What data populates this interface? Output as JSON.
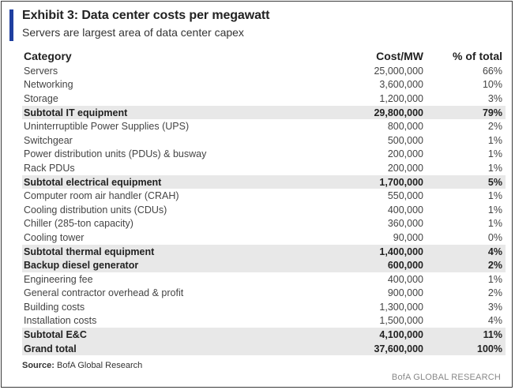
{
  "exhibit": {
    "title": "Exhibit 3: Data center costs per megawatt",
    "subtitle": "Servers are largest area of data center capex"
  },
  "table": {
    "headers": [
      "Category",
      "Cost/MW",
      "% of total"
    ],
    "rows": [
      {
        "category": "Servers",
        "cost": "25,000,000",
        "pct": "66%",
        "subtotal": false
      },
      {
        "category": "Networking",
        "cost": "3,600,000",
        "pct": "10%",
        "subtotal": false
      },
      {
        "category": "Storage",
        "cost": "1,200,000",
        "pct": "3%",
        "subtotal": false
      },
      {
        "category": "Subtotal IT equipment",
        "cost": "29,800,000",
        "pct": "79%",
        "subtotal": true
      },
      {
        "category": "Uninterruptible Power Supplies (UPS)",
        "cost": "800,000",
        "pct": "2%",
        "subtotal": false
      },
      {
        "category": "Switchgear",
        "cost": "500,000",
        "pct": "1%",
        "subtotal": false
      },
      {
        "category": "Power distribution units (PDUs) & busway",
        "cost": "200,000",
        "pct": "1%",
        "subtotal": false
      },
      {
        "category": "Rack PDUs",
        "cost": "200,000",
        "pct": "1%",
        "subtotal": false
      },
      {
        "category": "Subtotal electrical equipment",
        "cost": "1,700,000",
        "pct": "5%",
        "subtotal": true
      },
      {
        "category": "Computer room air handler (CRAH)",
        "cost": "550,000",
        "pct": "1%",
        "subtotal": false
      },
      {
        "category": "Cooling distribution units (CDUs)",
        "cost": "400,000",
        "pct": "1%",
        "subtotal": false
      },
      {
        "category": "Chiller (285-ton capacity)",
        "cost": "360,000",
        "pct": "1%",
        "subtotal": false
      },
      {
        "category": "Cooling tower",
        "cost": "90,000",
        "pct": "0%",
        "subtotal": false
      },
      {
        "category": "Subtotal thermal equipment",
        "cost": "1,400,000",
        "pct": "4%",
        "subtotal": true
      },
      {
        "category": "Backup diesel generator",
        "cost": "600,000",
        "pct": "2%",
        "subtotal": true
      },
      {
        "category": "Engineering fee",
        "cost": "400,000",
        "pct": "1%",
        "subtotal": false
      },
      {
        "category": "General contractor overhead & profit",
        "cost": "900,000",
        "pct": "2%",
        "subtotal": false
      },
      {
        "category": "Building costs",
        "cost": "1,300,000",
        "pct": "3%",
        "subtotal": false
      },
      {
        "category": "Installation costs",
        "cost": "1,500,000",
        "pct": "4%",
        "subtotal": false
      },
      {
        "category": "Subtotal E&C",
        "cost": "4,100,000",
        "pct": "11%",
        "subtotal": true
      },
      {
        "category": "Grand total",
        "cost": "37,600,000",
        "pct": "100%",
        "subtotal": true
      }
    ]
  },
  "source": {
    "label": "Source:",
    "text": " BofA Global Research"
  },
  "branding": "BofA GLOBAL RESEARCH",
  "colors": {
    "accent_bar": "#1f3fa0",
    "subtotal_row": "#e8e8e8",
    "frame_border": "#3a3a3a"
  }
}
